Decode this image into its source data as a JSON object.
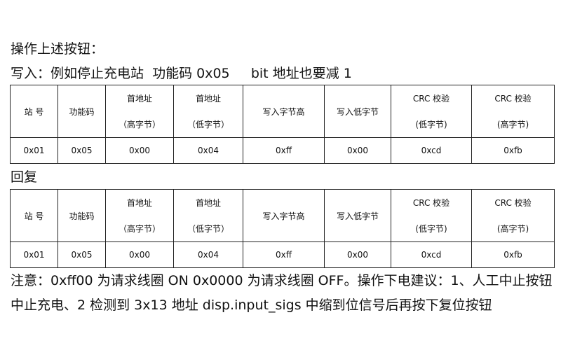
{
  "heading": "操作上述按钮：",
  "write_line": "写入：例如停止充电站  功能码 0x05     bit 地址也要减 1",
  "reply_label": "回复",
  "table_headers": [
    [
      "站 号"
    ],
    [
      "功能码"
    ],
    [
      "首地址",
      "（高字节）"
    ],
    [
      "首地址",
      "（低字节）"
    ],
    [
      "写入字节高"
    ],
    [
      "写入低字节"
    ],
    [
      "CRC 校验",
      "(低字节)"
    ],
    [
      "CRC 校验",
      "(高字节)"
    ]
  ],
  "write_table": {
    "row": [
      "0x01",
      "0x05",
      "0x00",
      "0x04",
      "0xff",
      "0x00",
      "0xcd",
      "0xfb"
    ]
  },
  "reply_table": {
    "row": [
      "0x01",
      "0x05",
      "0x00",
      "0x04",
      "0xff",
      "0x00",
      "0xcd",
      "0xfb"
    ]
  },
  "note": "注意：0xff00  为请求线圈 ON     0x0000  为请求线圈 OFF。操作下电建议：1、人工中止按钮中止充电、2 检测到 3x13 地址 disp.input_sigs 中缩到位信号后再按下复位按钮"
}
